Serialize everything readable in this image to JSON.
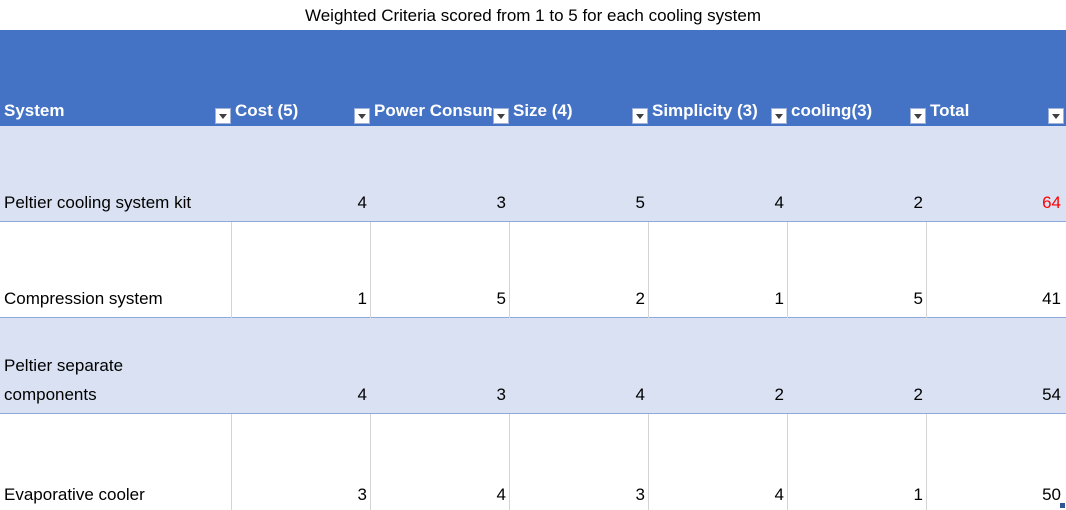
{
  "title": "Weighted Criteria scored from 1 to 5 for each cooling system",
  "headers": [
    "System",
    "Cost (5)",
    "Power Consumption",
    "Size (4)",
    "Simplicity (3)",
    "cooling(3)",
    "Total"
  ],
  "rows": [
    {
      "system": "Peltier cooling system kit",
      "values": [
        "4",
        "3",
        "5",
        "4",
        "2"
      ],
      "total": "64"
    },
    {
      "system": "Compression system",
      "values": [
        "1",
        "5",
        "2",
        "1",
        "5"
      ],
      "total": "41"
    },
    {
      "system": "Peltier separate components",
      "values": [
        "4",
        "3",
        "4",
        "2",
        "2"
      ],
      "total": "54"
    },
    {
      "system": "Evaporative cooler",
      "values": [
        "3",
        "4",
        "3",
        "4",
        "1"
      ],
      "total": "50"
    }
  ],
  "colors": {
    "header_bg": "#4472c4",
    "band_bg": "#d9e1f2",
    "highlight_total": "#ff0000"
  }
}
